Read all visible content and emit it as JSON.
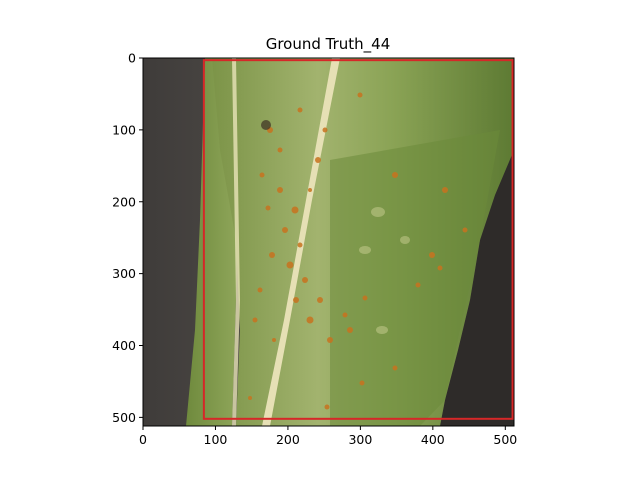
{
  "figure": {
    "title": "Ground Truth_44"
  },
  "image_axes": {
    "x_range": [
      0,
      512
    ],
    "y_range": [
      0,
      512
    ],
    "x_ticks": [
      0,
      100,
      200,
      300,
      400,
      500
    ],
    "y_ticks": [
      0,
      100,
      200,
      300,
      400,
      500
    ]
  },
  "bounding_box": {
    "label": "ground-truth-box",
    "color": "#d62728",
    "x_min": 84,
    "y_min": 3,
    "x_max": 510,
    "y_max": 502
  },
  "photo": {
    "subject": "corn leaf with rust lesions",
    "colors": {
      "background": "#4a4744",
      "leaf_light": "#9fb26a",
      "leaf_dark": "#5f7d34",
      "midrib": "#e6e0b5",
      "lesion": "#c8731f"
    }
  }
}
